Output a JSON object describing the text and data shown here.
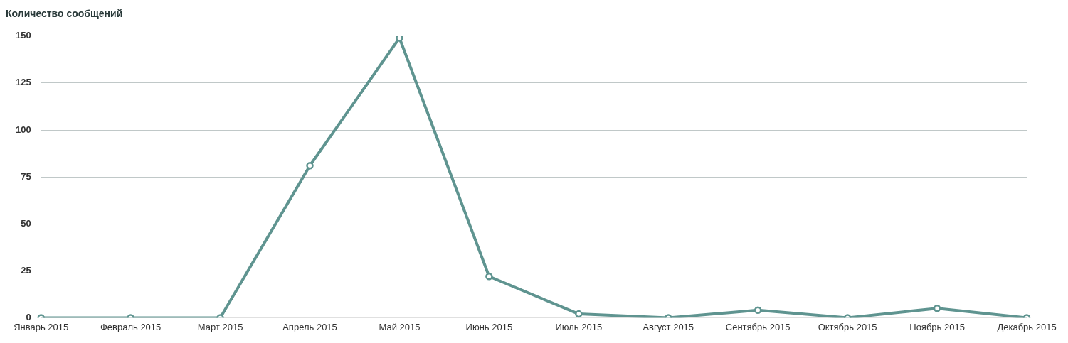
{
  "chart_data": {
    "type": "line",
    "title": "Количество сообщений",
    "categories": [
      "Январь 2015",
      "Февраль 2015",
      "Март 2015",
      "Апрель 2015",
      "Май 2015",
      "Июнь 2015",
      "Июль 2015",
      "Август 2015",
      "Сентябрь 2015",
      "Октябрь 2015",
      "Ноябрь 2015",
      "Декабрь 2015"
    ],
    "series": [
      {
        "color": "#5f9490",
        "values": [
          0,
          0,
          0,
          81,
          149,
          22,
          2,
          0,
          4,
          0,
          5,
          0
        ]
      }
    ],
    "ylim": [
      0,
      150
    ],
    "yticks": [
      0,
      25,
      50,
      75,
      100,
      125,
      150
    ],
    "grid": "y",
    "legend": false,
    "marker": "circle",
    "line_style": "solid"
  }
}
